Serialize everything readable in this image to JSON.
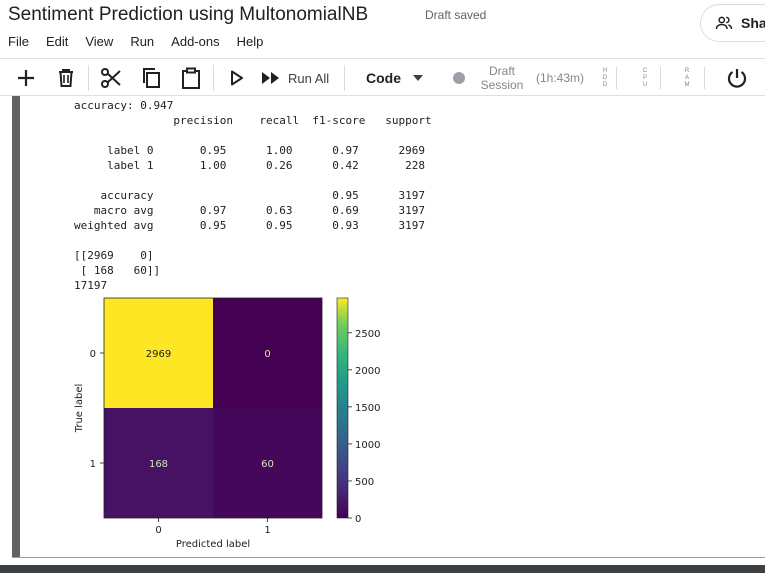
{
  "header": {
    "title": "Sentiment Prediction using MultonomialNB",
    "status": "Draft saved",
    "share_label": "Sha"
  },
  "menu": {
    "items": [
      "File",
      "Edit",
      "View",
      "Run",
      "Add-ons",
      "Help"
    ]
  },
  "toolbar": {
    "run_all_label": "Run All",
    "cell_type": "Code",
    "session_line1": "Draft",
    "session_line2": "Session",
    "timer": "(1h:43m)",
    "meter_hdd": "HDD",
    "meter_cpu": "CPU",
    "meter_ram": "RAM"
  },
  "output": {
    "lines": [
      "accuracy: 0.947",
      "               precision    recall  f1-score   support",
      "",
      "     label 0       0.95      1.00      0.97      2969",
      "     label 1       1.00      0.26      0.42       228",
      "",
      "    accuracy                           0.95      3197",
      "   macro avg       0.97      0.63      0.69      3197",
      "weighted avg       0.95      0.95      0.93      3197",
      "",
      "[[2969    0]",
      " [ 168   60]]",
      "17197"
    ]
  },
  "chart_data": {
    "type": "heatmap",
    "title": "",
    "xlabel": "Predicted label",
    "ylabel": "True label",
    "x_categories": [
      "0",
      "1"
    ],
    "y_categories": [
      "0",
      "1"
    ],
    "values": [
      [
        2969,
        0
      ],
      [
        168,
        60
      ]
    ],
    "colormap": "viridis",
    "colorbar_ticks": [
      0,
      500,
      1000,
      1500,
      2000,
      2500
    ],
    "colorbar_range": [
      0,
      2969
    ],
    "colors": {
      "high": "#fde725",
      "low": "#440154"
    }
  }
}
